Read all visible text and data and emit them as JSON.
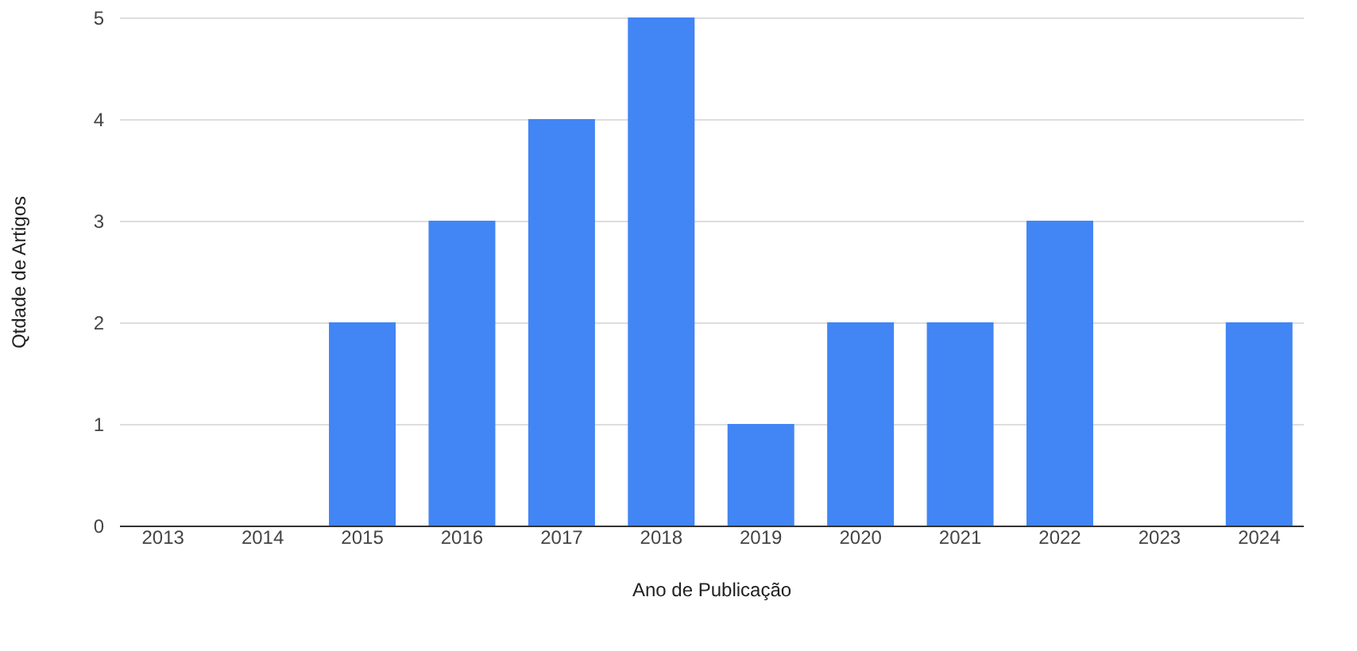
{
  "chart_data": {
    "type": "bar",
    "xlabel": "Ano de Publicação",
    "ylabel": "Qtdade de Artigos",
    "categories": [
      "2013",
      "2014",
      "2015",
      "2016",
      "2017",
      "2018",
      "2019",
      "2020",
      "2021",
      "2022",
      "2023",
      "2024"
    ],
    "values": [
      0,
      0,
      2,
      3,
      4,
      5,
      1,
      2,
      2,
      3,
      0,
      2
    ],
    "color": "#4285f4",
    "ylim": [
      0,
      5
    ],
    "yticks": [
      0,
      1,
      2,
      3,
      4,
      5
    ],
    "grid": "y"
  }
}
